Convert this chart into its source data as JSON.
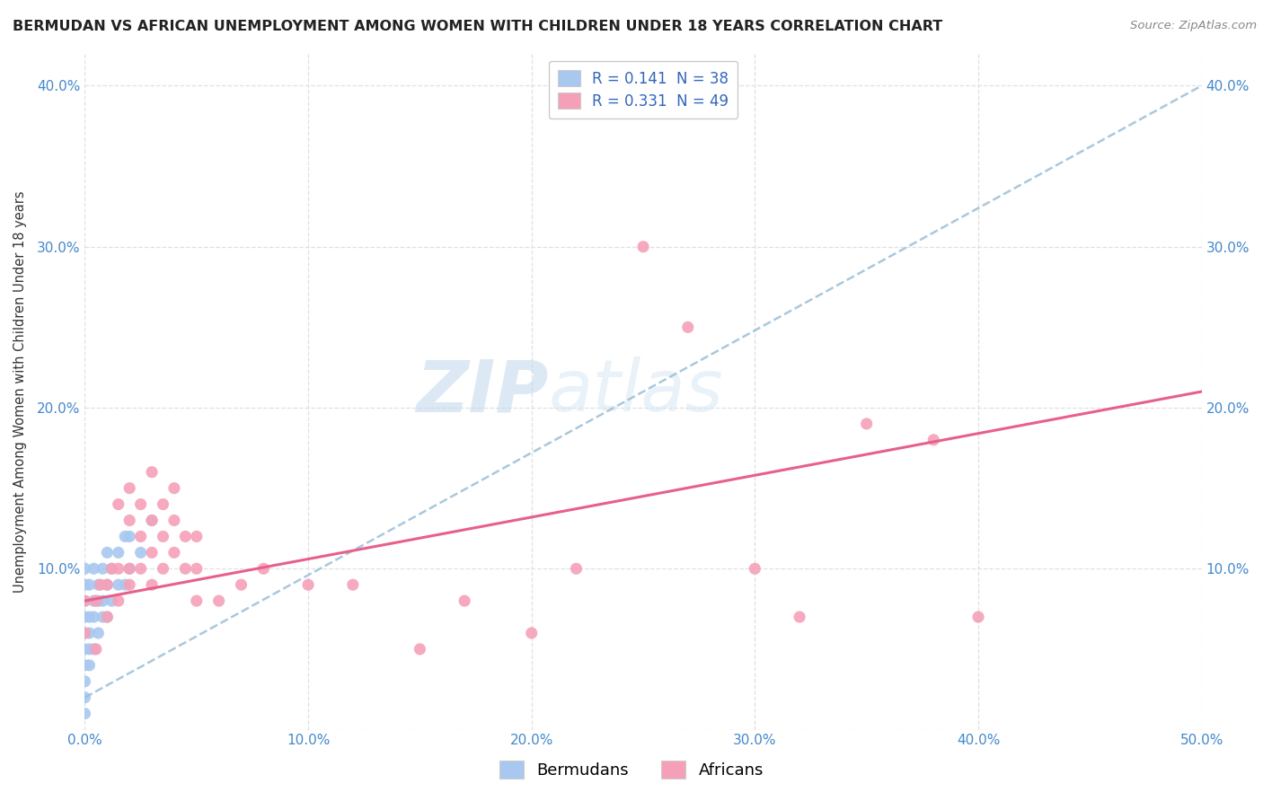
{
  "title": "BERMUDAN VS AFRICAN UNEMPLOYMENT AMONG WOMEN WITH CHILDREN UNDER 18 YEARS CORRELATION CHART",
  "source": "Source: ZipAtlas.com",
  "ylabel": "Unemployment Among Women with Children Under 18 years",
  "xlim": [
    0.0,
    0.5
  ],
  "ylim": [
    0.0,
    0.42
  ],
  "xticks": [
    0.0,
    0.1,
    0.2,
    0.3,
    0.4,
    0.5
  ],
  "yticks": [
    0.0,
    0.1,
    0.2,
    0.3,
    0.4
  ],
  "xtick_labels": [
    "0.0%",
    "10.0%",
    "20.0%",
    "30.0%",
    "40.0%",
    "50.0%"
  ],
  "ytick_labels": [
    "",
    "10.0%",
    "20.0%",
    "30.0%",
    "40.0%"
  ],
  "bermuda_color": "#a8c8f0",
  "african_color": "#f5a0b8",
  "bermuda_line_color": "#9abfd8",
  "african_line_color": "#e8608a",
  "R_bermuda": 0.141,
  "N_bermuda": 38,
  "R_african": 0.331,
  "N_african": 49,
  "legend_label_bermuda": "Bermudans",
  "legend_label_african": "Africans",
  "watermark": "ZIPatlas",
  "background_color": "#ffffff",
  "grid_color": "#e0e0e0",
  "bermuda_scatter_x": [
    0.0,
    0.0,
    0.0,
    0.0,
    0.0,
    0.0,
    0.0,
    0.0,
    0.0,
    0.0,
    0.002,
    0.002,
    0.002,
    0.002,
    0.002,
    0.004,
    0.004,
    0.004,
    0.004,
    0.006,
    0.006,
    0.006,
    0.008,
    0.008,
    0.008,
    0.01,
    0.01,
    0.01,
    0.012,
    0.012,
    0.015,
    0.015,
    0.018,
    0.018,
    0.02,
    0.02,
    0.025,
    0.03
  ],
  "bermuda_scatter_y": [
    0.01,
    0.02,
    0.03,
    0.04,
    0.05,
    0.06,
    0.07,
    0.08,
    0.09,
    0.1,
    0.04,
    0.05,
    0.06,
    0.07,
    0.09,
    0.05,
    0.07,
    0.08,
    0.1,
    0.06,
    0.08,
    0.09,
    0.07,
    0.08,
    0.1,
    0.07,
    0.09,
    0.11,
    0.08,
    0.1,
    0.09,
    0.11,
    0.09,
    0.12,
    0.1,
    0.12,
    0.11,
    0.13
  ],
  "african_scatter_x": [
    0.0,
    0.0,
    0.005,
    0.005,
    0.007,
    0.01,
    0.01,
    0.012,
    0.015,
    0.015,
    0.015,
    0.02,
    0.02,
    0.02,
    0.02,
    0.025,
    0.025,
    0.025,
    0.03,
    0.03,
    0.03,
    0.03,
    0.035,
    0.035,
    0.035,
    0.04,
    0.04,
    0.04,
    0.045,
    0.045,
    0.05,
    0.05,
    0.05,
    0.06,
    0.07,
    0.08,
    0.1,
    0.12,
    0.15,
    0.17,
    0.2,
    0.22,
    0.25,
    0.27,
    0.3,
    0.32,
    0.35,
    0.38,
    0.4
  ],
  "african_scatter_y": [
    0.06,
    0.08,
    0.05,
    0.08,
    0.09,
    0.07,
    0.09,
    0.1,
    0.08,
    0.1,
    0.14,
    0.09,
    0.1,
    0.13,
    0.15,
    0.1,
    0.12,
    0.14,
    0.09,
    0.11,
    0.13,
    0.16,
    0.1,
    0.12,
    0.14,
    0.11,
    0.13,
    0.15,
    0.1,
    0.12,
    0.08,
    0.1,
    0.12,
    0.08,
    0.09,
    0.1,
    0.09,
    0.09,
    0.05,
    0.08,
    0.06,
    0.1,
    0.3,
    0.25,
    0.1,
    0.07,
    0.19,
    0.18,
    0.07
  ],
  "bermuda_line_x": [
    0.0,
    0.5
  ],
  "bermuda_line_y": [
    0.02,
    0.4
  ],
  "african_line_x": [
    0.0,
    0.5
  ],
  "african_line_y": [
    0.08,
    0.21
  ]
}
